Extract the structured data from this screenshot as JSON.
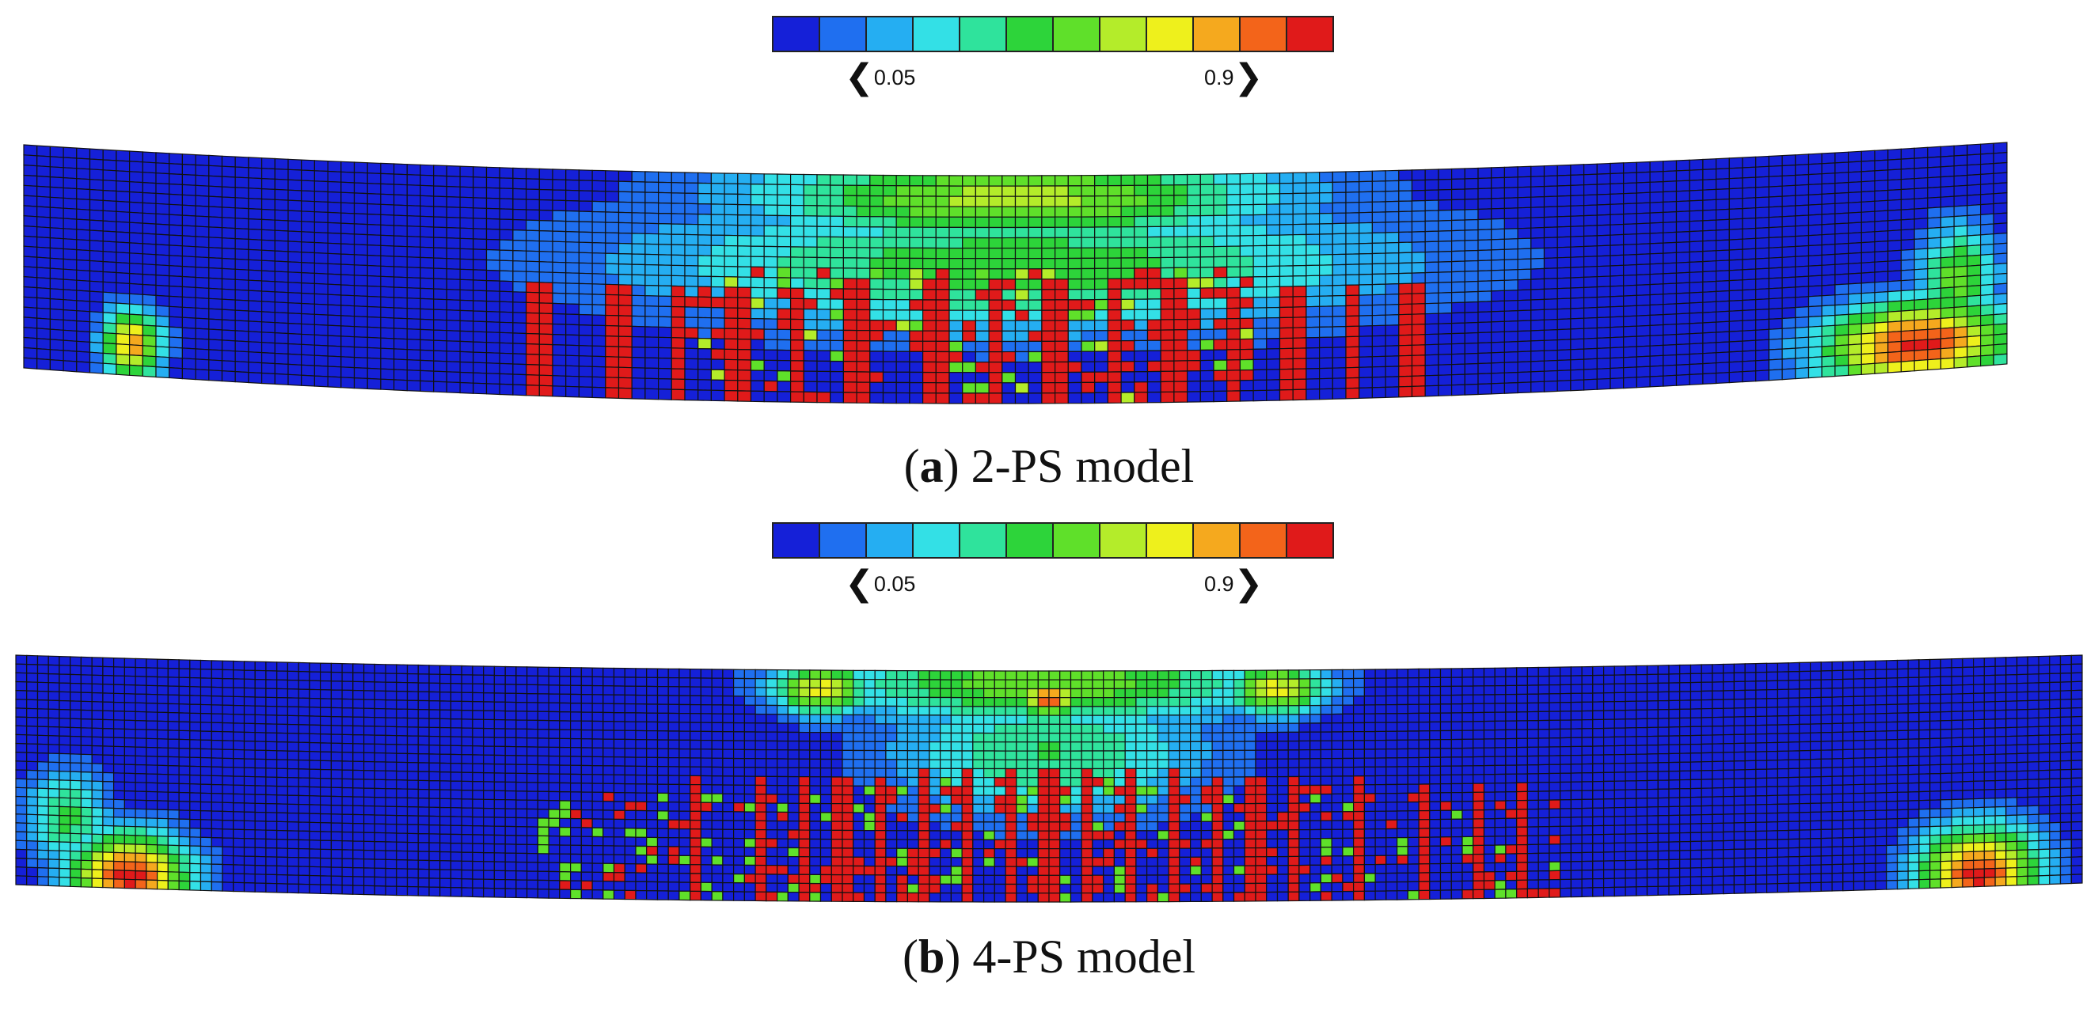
{
  "colormap": {
    "colors": [
      "#1520d8",
      "#1f6ff0",
      "#25aef2",
      "#33e0e6",
      "#2fe39c",
      "#2dd43a",
      "#5fe02a",
      "#b4ec2a",
      "#eef01c",
      "#f5a91e",
      "#f3641a",
      "#e01a1a"
    ],
    "min_label": "0.05",
    "max_label": "0.9",
    "left_arrow": "❮",
    "right_arrow": "❯"
  },
  "panels": [
    {
      "letter": "a",
      "label": ") 2-PS model",
      "open": "("
    },
    {
      "letter": "b",
      "label": ") 4-PS model",
      "open": "("
    }
  ]
}
